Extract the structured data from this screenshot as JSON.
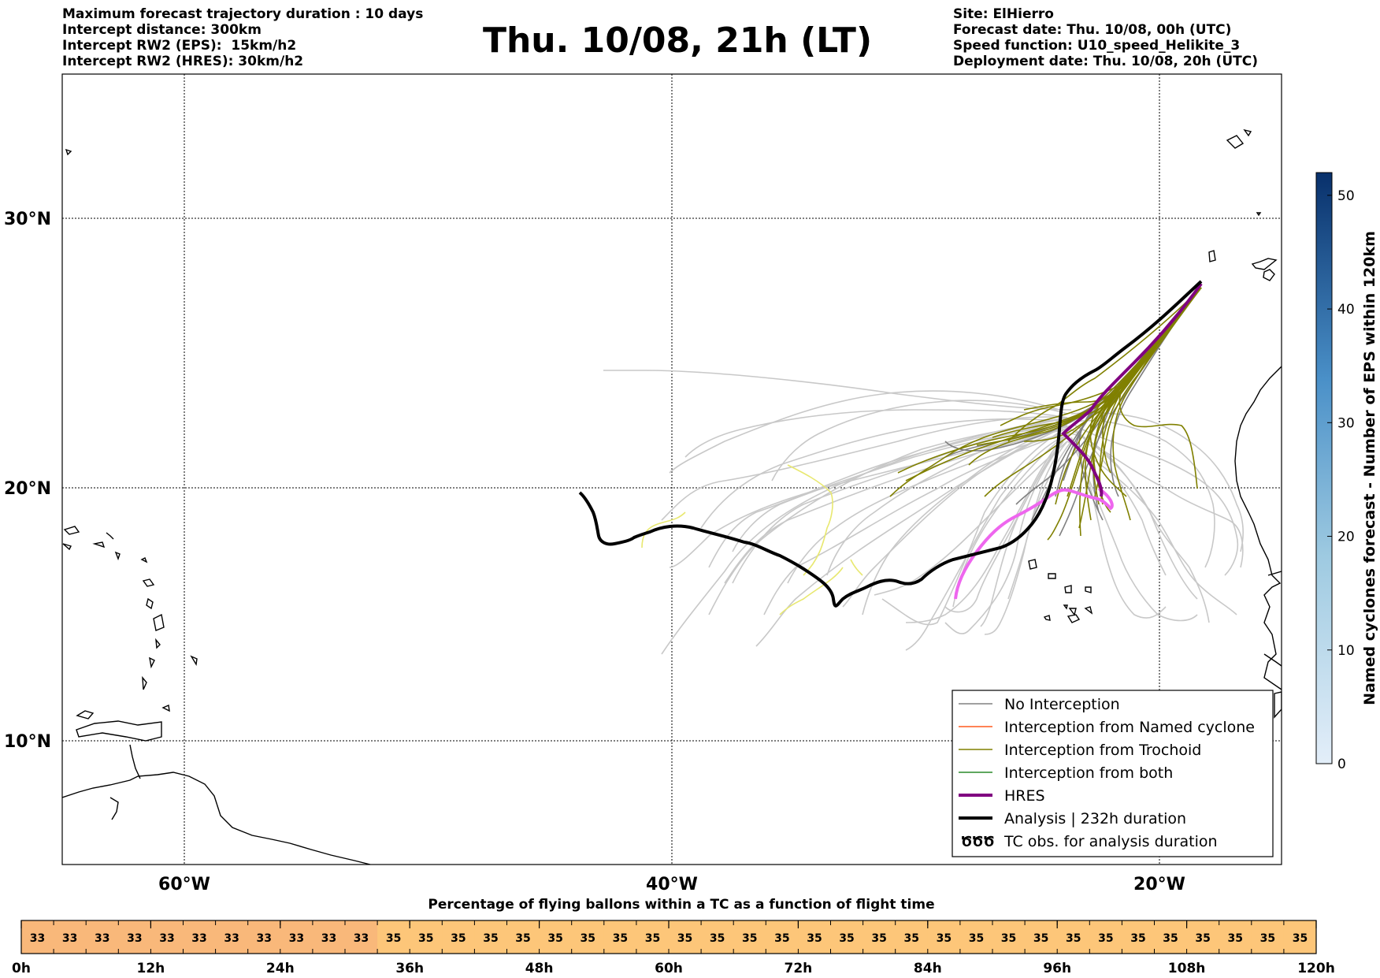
{
  "header": {
    "left_lines": [
      "Maximum forecast trajectory duration : 10 days",
      "Intercept distance: 300km",
      "Intercept RW2 (EPS):  15km/h2",
      "Intercept RW2 (HRES): 30km/h2"
    ],
    "title": "Thu. 10/08, 21h (LT)",
    "right_lines": [
      "Site: ElHierro",
      "Forecast date: Thu. 10/08, 00h (UTC)",
      "Speed function: U10_speed_Helikite_3",
      "Deployment date: Thu. 10/08, 20h (UTC)"
    ]
  },
  "map": {
    "lat_labels": [
      "30°N",
      "20°N",
      "10°N"
    ],
    "lon_labels": [
      "60°W",
      "40°W",
      "20°W"
    ],
    "legend": [
      {
        "label": "No Interception",
        "color": "#808080",
        "style": "thin"
      },
      {
        "label": "Interception from Named cyclone",
        "color": "#ff5a1e",
        "style": "thin"
      },
      {
        "label": "Interception from Trochoid",
        "color": "#808000",
        "style": "thin"
      },
      {
        "label": "Interception from both",
        "color": "#2a8a2a",
        "style": "thin"
      },
      {
        "label": "HRES",
        "color": "#800080",
        "style": "thick"
      },
      {
        "label": "Analysis | 232h duration",
        "color": "#000000",
        "style": "thick"
      },
      {
        "label": "TC obs. for analysis duration",
        "color": "#000000",
        "style": "symbol"
      }
    ],
    "colors": {
      "no_interception": "#808080",
      "light_ensemble": "#c8c8c8",
      "trochoid": "#808000",
      "hres": "#800080",
      "hres_forecast": "#ee66ee",
      "analysis": "#000000",
      "yellow_track": "#e8e870"
    }
  },
  "colorbar": {
    "label": "Named cyclones forecast - Number of EPS within 120km",
    "ticks": [
      "0",
      "10",
      "20",
      "30",
      "40",
      "50"
    ],
    "color_low": "#e3eef9",
    "color_high": "#08306b"
  },
  "timebar": {
    "title": "Percentage of flying ballons within a TC as a function of flight time",
    "values": [
      "33",
      "33",
      "33",
      "33",
      "33",
      "33",
      "33",
      "33",
      "33",
      "33",
      "33",
      "35",
      "35",
      "35",
      "35",
      "35",
      "35",
      "35",
      "35",
      "35",
      "35",
      "35",
      "35",
      "35",
      "35",
      "35",
      "35",
      "35",
      "35",
      "35",
      "35",
      "35",
      "35",
      "35",
      "35",
      "35",
      "35",
      "35",
      "35",
      "35"
    ],
    "tick_labels": [
      "0h",
      "12h",
      "24h",
      "36h",
      "48h",
      "60h",
      "72h",
      "84h",
      "96h",
      "108h",
      "120h"
    ],
    "color_33": "#f9b87a",
    "color_35": "#fdc679"
  }
}
